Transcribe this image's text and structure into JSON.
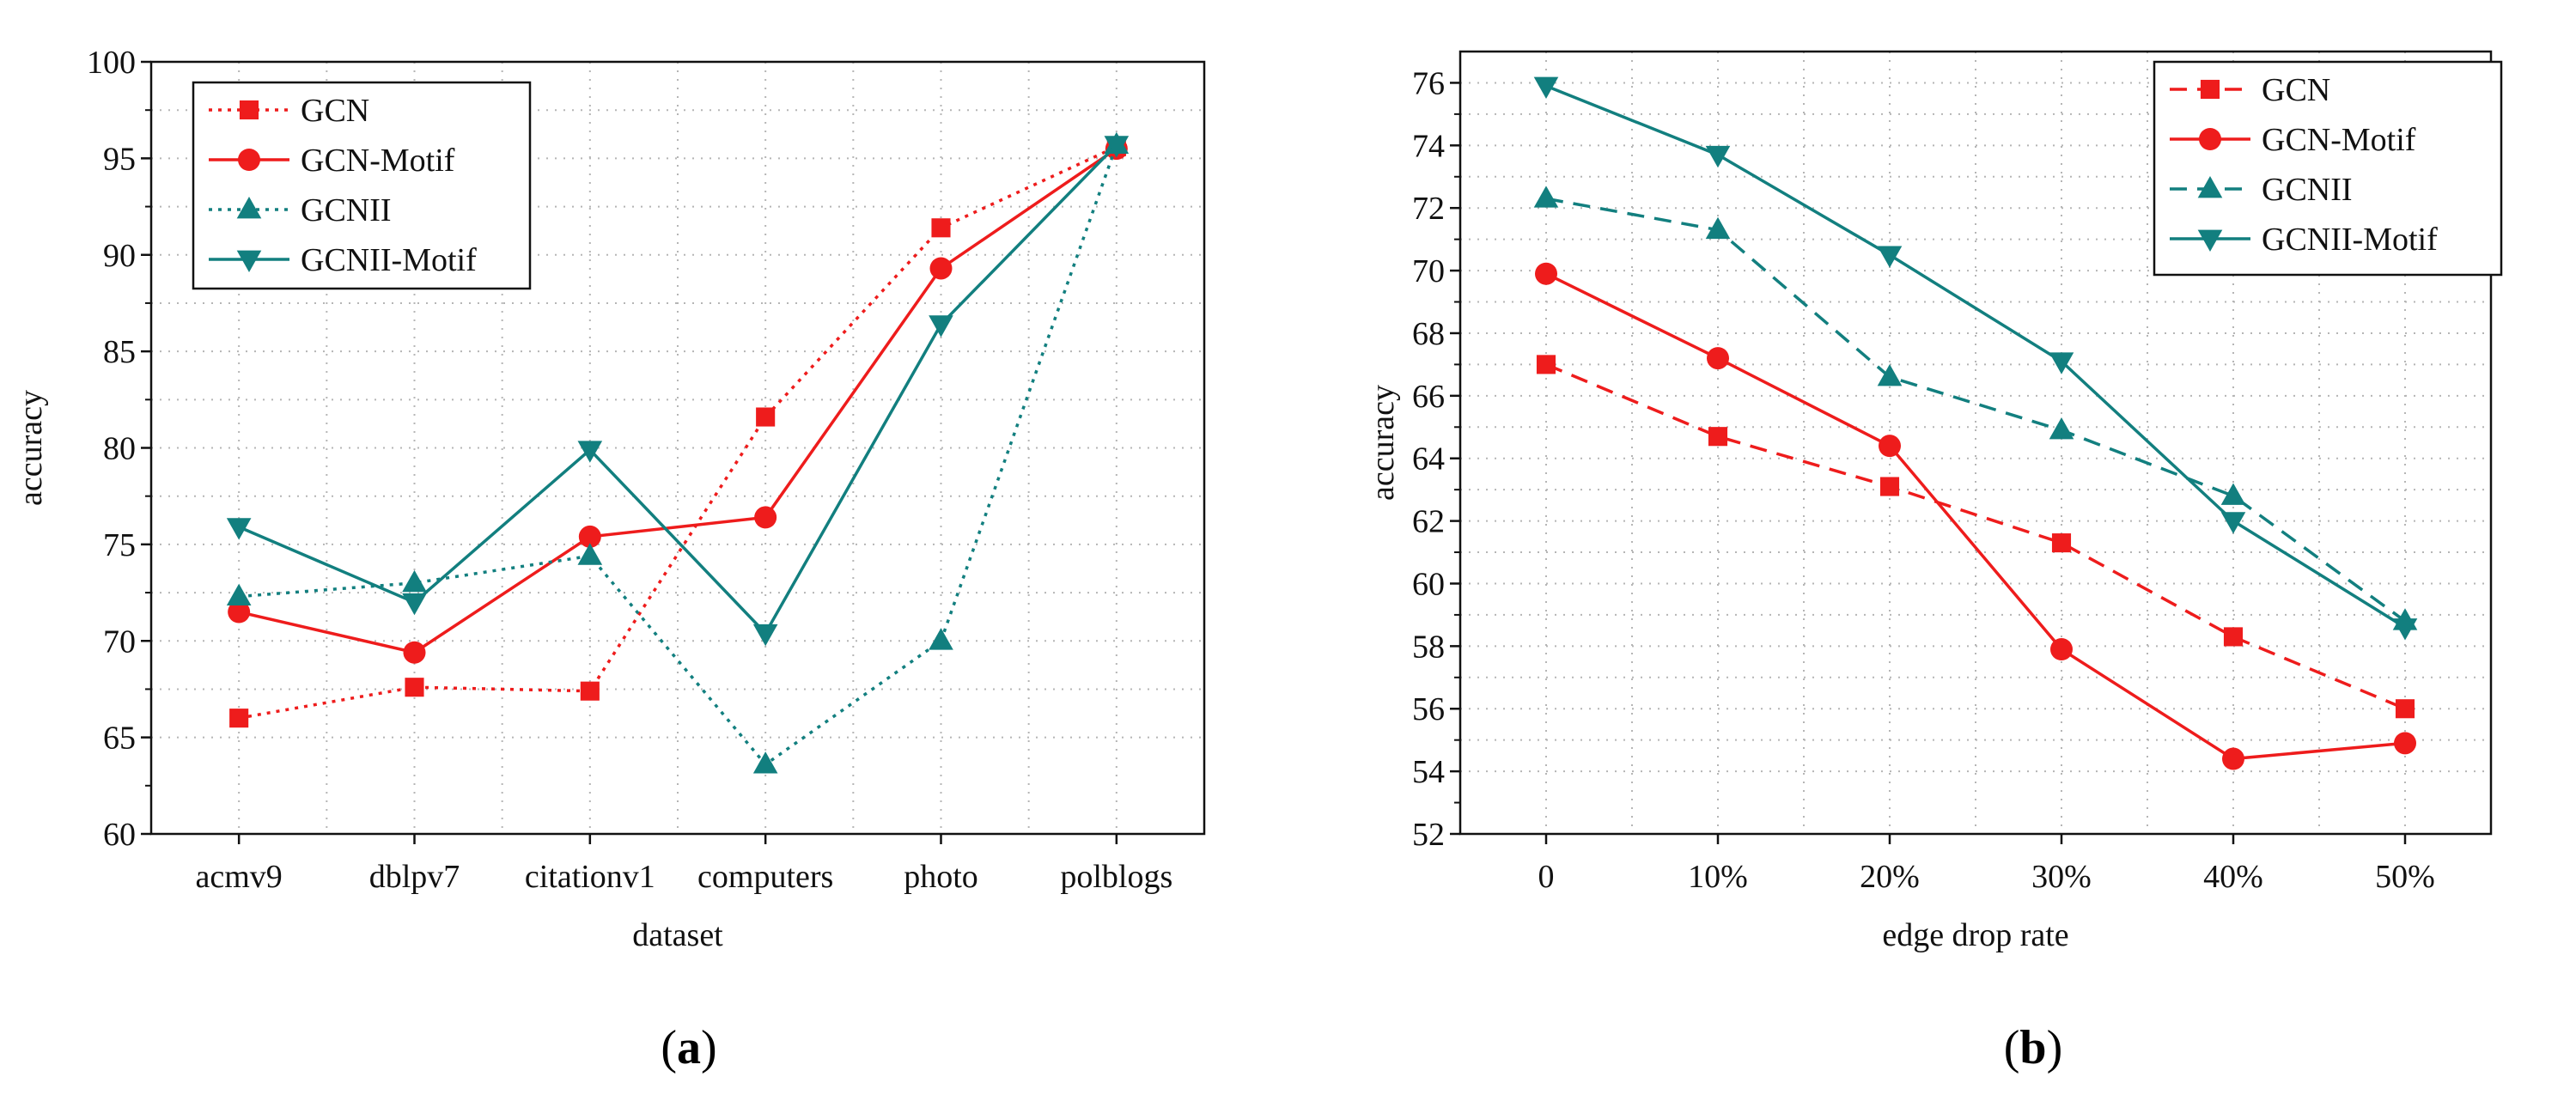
{
  "colors": {
    "red": "#ee1c1c",
    "teal": "#127f7f",
    "grid": "#b5b5b5",
    "axis": "#111111"
  },
  "chart_data": [
    {
      "type": "line",
      "caption_letter": "a",
      "xlabel": "dataset",
      "ylabel": "accuracy",
      "categories": [
        "acmv9",
        "dblpv7",
        "citationv1",
        "computers",
        "photo",
        "polblogs"
      ],
      "ylim": [
        60,
        100
      ],
      "yticks": [
        60,
        65,
        70,
        75,
        80,
        85,
        90,
        95,
        100
      ],
      "legend_position": "top-left",
      "series": [
        {
          "name": "GCN",
          "color": "#ee1c1c",
          "dash": "dotted",
          "marker": "square",
          "values": [
            66.0,
            67.6,
            67.4,
            81.6,
            91.4,
            95.6
          ]
        },
        {
          "name": "GCN-Motif",
          "color": "#ee1c1c",
          "dash": "solid",
          "marker": "circle",
          "values": [
            71.5,
            69.4,
            75.4,
            76.4,
            89.3,
            95.5
          ]
        },
        {
          "name": "GCNII",
          "color": "#127f7f",
          "dash": "dotted",
          "marker": "triangle-up",
          "values": [
            72.3,
            73.0,
            74.4,
            63.6,
            70.0,
            95.7
          ]
        },
        {
          "name": "GCNII-Motif",
          "color": "#127f7f",
          "dash": "solid",
          "marker": "triangle-down",
          "values": [
            75.9,
            72.0,
            79.9,
            70.4,
            86.4,
            95.7
          ]
        }
      ]
    },
    {
      "type": "line",
      "caption_letter": "b",
      "xlabel": "edge drop rate",
      "ylabel": "accuracy",
      "categories": [
        "0",
        "10%",
        "20%",
        "30%",
        "40%",
        "50%"
      ],
      "ylim": [
        52,
        77
      ],
      "yticks": [
        52,
        54,
        56,
        58,
        60,
        62,
        64,
        66,
        68,
        70,
        72,
        74,
        76
      ],
      "legend_position": "top-right",
      "series": [
        {
          "name": "GCN",
          "color": "#ee1c1c",
          "dash": "dashed",
          "marker": "square",
          "values": [
            67.0,
            64.7,
            63.1,
            61.3,
            58.3,
            56.0
          ]
        },
        {
          "name": "GCN-Motif",
          "color": "#ee1c1c",
          "dash": "solid",
          "marker": "circle",
          "values": [
            69.9,
            67.2,
            64.4,
            57.9,
            54.4,
            54.9
          ]
        },
        {
          "name": "GCNII",
          "color": "#127f7f",
          "dash": "dashed",
          "marker": "triangle-up",
          "values": [
            72.3,
            71.3,
            66.6,
            64.9,
            62.8,
            58.8
          ]
        },
        {
          "name": "GCNII-Motif",
          "color": "#127f7f",
          "dash": "solid",
          "marker": "triangle-down",
          "values": [
            75.9,
            73.7,
            70.5,
            67.1,
            62.0,
            58.6
          ]
        }
      ]
    }
  ]
}
